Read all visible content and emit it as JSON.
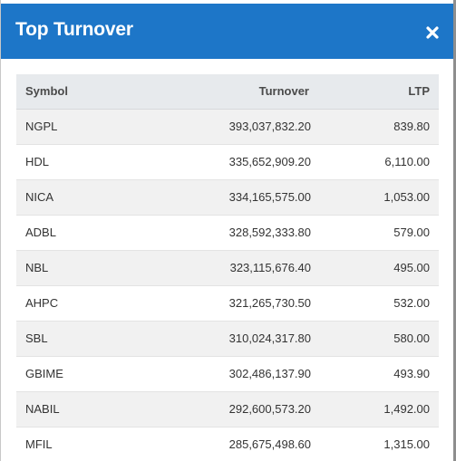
{
  "modal": {
    "title": "Top Turnover",
    "close_label": "×"
  },
  "table": {
    "columns": [
      "Symbol",
      "Turnover",
      "LTP"
    ],
    "rows": [
      {
        "symbol": "NGPL",
        "turnover": "393,037,832.20",
        "ltp": "839.80"
      },
      {
        "symbol": "HDL",
        "turnover": "335,652,909.20",
        "ltp": "6,110.00"
      },
      {
        "symbol": "NICA",
        "turnover": "334,165,575.00",
        "ltp": "1,053.00"
      },
      {
        "symbol": "ADBL",
        "turnover": "328,592,333.80",
        "ltp": "579.00"
      },
      {
        "symbol": "NBL",
        "turnover": "323,115,676.40",
        "ltp": "495.00"
      },
      {
        "symbol": "AHPC",
        "turnover": "321,265,730.50",
        "ltp": "532.00"
      },
      {
        "symbol": "SBL",
        "turnover": "310,024,317.80",
        "ltp": "580.00"
      },
      {
        "symbol": "GBIME",
        "turnover": "302,486,137.90",
        "ltp": "493.90"
      },
      {
        "symbol": "NABIL",
        "turnover": "292,600,573.20",
        "ltp": "1,492.00"
      },
      {
        "symbol": "MFIL",
        "turnover": "285,675,498.60",
        "ltp": "1,315.00"
      }
    ]
  },
  "colors": {
    "header_bg": "#1d76c8",
    "header_text": "#ffffff",
    "table_head_bg": "#e7eaed",
    "row_stripe": "#f1f1f1"
  },
  "icons": {
    "close": "close-icon"
  }
}
